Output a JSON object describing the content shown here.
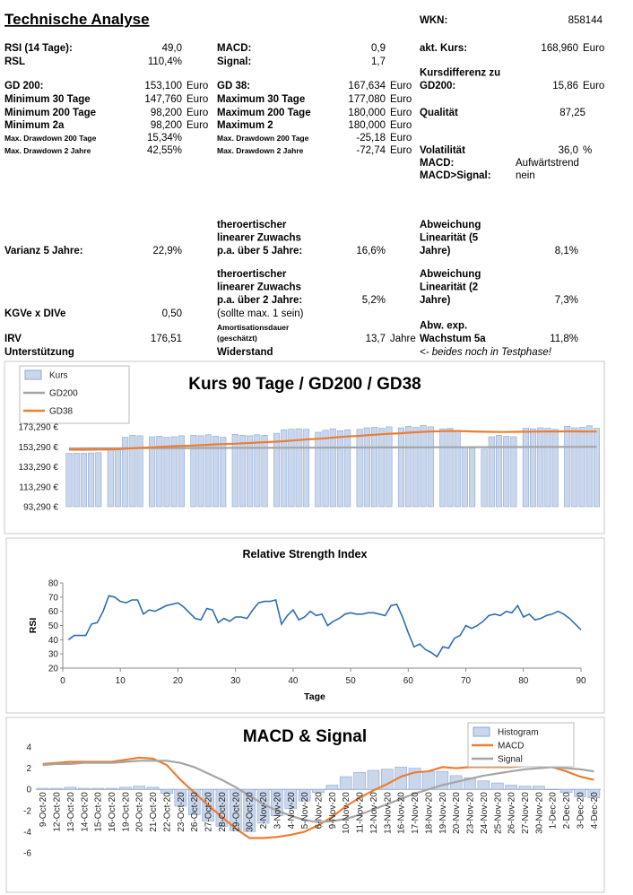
{
  "title": "Technische Analyse",
  "items": [
    {
      "label": [
        "WKN:"
      ],
      "value": "858144"
    },
    {
      "label": [
        "RSI (14 Tage):"
      ],
      "value": "49,0"
    },
    {
      "label": [
        "RSL"
      ],
      "value": "110,4%"
    },
    {
      "label": [
        "GD 200:"
      ],
      "value": "153,100",
      "unit": "Euro"
    },
    {
      "label": [
        "Minimum 30 Tage"
      ],
      "value": "147,760",
      "unit": "Euro"
    },
    {
      "label": [
        "Minimum 200 Tage"
      ],
      "value": "98,200",
      "unit": "Euro"
    },
    {
      "label": [
        "Minimum 2a"
      ],
      "value": "98,200",
      "unit": "Euro"
    },
    {
      "label": [
        "Max. Drawdown 200 Tage"
      ],
      "value": "15,34%"
    },
    {
      "label": [
        "Max. Drawdown 2 Jahre"
      ],
      "value": "42,55%"
    },
    {
      "label": [
        "Varianz 5 Jahre:"
      ],
      "value": "22,9%"
    },
    {
      "label": [
        "KGVe x DIVe"
      ],
      "value": "0,50"
    },
    {
      "label": [
        "IRV"
      ],
      "value": "176,51"
    },
    {
      "label": [
        "Unterstützung"
      ]
    },
    {
      "label": [
        "MACD:"
      ],
      "value": "0,9"
    },
    {
      "label": [
        "Signal:"
      ],
      "value": "1,7"
    },
    {
      "label": [
        "GD 38:"
      ],
      "value": "167,634",
      "unit": "Euro"
    },
    {
      "label": [
        "Maximum 30 Tage"
      ],
      "value": "177,080",
      "unit": "Euro"
    },
    {
      "label": [
        "Maximum 200 Tage"
      ],
      "value": "180,000",
      "unit": "Euro"
    },
    {
      "label": [
        "Maximum 2"
      ],
      "value": "180,000",
      "unit": "Euro"
    },
    {
      "label": [
        "Max. Drawdown 200 Tage"
      ],
      "value": "-25,18",
      "unit": "Euro"
    },
    {
      "label": [
        "Max. Drawdown 2 Jahre"
      ],
      "value": "-72,74",
      "unit": "Euro"
    },
    {
      "label": [
        "theroertischer",
        "linearer Zuwachs",
        "p.a. über 5 Jahre:"
      ],
      "value": "16,6%"
    },
    {
      "label": [
        "theroertischer",
        "linearer Zuwachs",
        "p.a. über 2 Jahre:"
      ],
      "value": "5,2%"
    },
    {
      "label": [
        "(sollte max. 1 sein)"
      ]
    },
    {
      "label": [
        "Amortisationsdauer",
        "(geschätzt)"
      ],
      "value": "13,7",
      "unit": "Jahre"
    },
    {
      "label": [
        "Widerstand"
      ]
    },
    {
      "label": [
        "akt. Kurs:"
      ],
      "value": "168,960",
      "unit": "Euro"
    },
    {
      "label": [
        "Kursdifferenz zu",
        "GD200:"
      ],
      "value": "15,86",
      "unit": "Euro"
    },
    {
      "label": [
        "Qualität"
      ],
      "value": "87,25"
    },
    {
      "label": [
        "Volatilität"
      ],
      "value": "36,0",
      "unit": "%"
    },
    {
      "label": [
        "MACD:"
      ],
      "value": "Aufwärtstrend"
    },
    {
      "label": [
        "MACD>Signal:"
      ],
      "value": "nein"
    },
    {
      "label": [
        "Abweichung",
        "Linearität (5",
        "Jahre)"
      ],
      "value": "8,1%"
    },
    {
      "label": [
        "Abweichung",
        "Linearität (2",
        "Jahre)"
      ],
      "value": "7,3%"
    },
    {
      "label": [
        "Abw. exp.",
        "Wachstum 5a"
      ],
      "value": "11,8%"
    },
    {
      "label": [
        "<- beides noch in Testphase!"
      ]
    }
  ],
  "chart_data": [
    {
      "type": "combo",
      "title": "Kurs 90 Tage / GD200 / GD38",
      "legend": "top-left",
      "ylim": [
        93290,
        183290
      ],
      "yticks": [
        {
          "value": 93290,
          "label": "93,290 €"
        },
        {
          "value": 113290,
          "label": "113,290 €"
        },
        {
          "value": 133290,
          "label": "133,290 €"
        },
        {
          "value": 153290,
          "label": "153,290 €"
        },
        {
          "value": 173290,
          "label": "173,290 €"
        }
      ],
      "series": [
        {
          "name": "Kurs",
          "type": "bar",
          "color": "#c9d6ec",
          "values": [
            146800,
            147000,
            146900,
            147200,
            147500,
            150500,
            151500,
            163000,
            165000,
            164500,
            163500,
            164000,
            163000,
            163500,
            164500,
            165000,
            164500,
            165500,
            164000,
            163000,
            166000,
            165000,
            164500,
            165500,
            165000,
            167000,
            170500,
            171000,
            171500,
            171000,
            168000,
            170000,
            171500,
            169500,
            170500,
            171000,
            172500,
            173000,
            172000,
            173500,
            172500,
            174000,
            173000,
            175000,
            173500,
            171500,
            172000,
            170000,
            153000,
            152000,
            151000,
            163500,
            165000,
            164000,
            163500,
            172000,
            171500,
            172500,
            172000,
            171000,
            174000,
            172500,
            173000,
            174500,
            172000
          ]
        },
        {
          "name": "GD200",
          "type": "line",
          "color": "#a5a5a5",
          "values": [
            151800,
            151825,
            151850,
            151875,
            151900,
            151925,
            151950,
            151975,
            152000,
            152025,
            152050,
            152075,
            152100,
            152125,
            152150,
            152175,
            152200,
            152225,
            152250,
            152275,
            152300,
            152325,
            152350,
            152375,
            152400,
            152425,
            152450,
            152475,
            152500,
            152525,
            152550,
            152575,
            152600,
            152625,
            152650,
            152675,
            152700,
            152725,
            152750,
            152775,
            152800,
            152825,
            152850,
            152875,
            152900,
            152925,
            152950,
            152975,
            153000,
            153025,
            153050,
            153075,
            153100,
            153125,
            153150,
            153175,
            153200,
            153225,
            153250,
            153275,
            153300,
            153325,
            153350,
            153375,
            153400
          ]
        },
        {
          "name": "GD38",
          "type": "line",
          "color": "#ed7d31",
          "values": [
            150500,
            150400,
            150400,
            150500,
            150600,
            150800,
            151000,
            151500,
            152000,
            152400,
            152800,
            153200,
            153600,
            154000,
            154300,
            154700,
            155000,
            155400,
            155800,
            156100,
            156500,
            156900,
            157200,
            157600,
            158000,
            158500,
            159000,
            159600,
            160200,
            160800,
            161400,
            162000,
            162600,
            163200,
            163800,
            164400,
            165000,
            165500,
            166000,
            166500,
            167000,
            167500,
            168000,
            168400,
            168800,
            169100,
            169300,
            169200,
            169000,
            168800,
            168500,
            168400,
            168300,
            168300,
            168400,
            168500,
            168600,
            168700,
            168800,
            168800,
            168900,
            168900,
            168800,
            168700,
            168700
          ]
        }
      ]
    },
    {
      "type": "line",
      "title": "Relative Strength Index",
      "xlabel": "Tage",
      "ylabel": "RSI",
      "xlim": [
        0,
        90
      ],
      "xticks": [
        0,
        10,
        20,
        30,
        40,
        50,
        60,
        70,
        80,
        90
      ],
      "ylim": [
        20,
        80
      ],
      "yticks": [
        20,
        30,
        40,
        50,
        60,
        70,
        80
      ],
      "color": "#2f6db5",
      "x": [
        1,
        2,
        3,
        4,
        5,
        6,
        7,
        8,
        9,
        10,
        11,
        12,
        13,
        14,
        15,
        16,
        17,
        18,
        19,
        20,
        21,
        22,
        23,
        24,
        25,
        26,
        27,
        28,
        29,
        30,
        31,
        32,
        33,
        34,
        35,
        36,
        37,
        38,
        39,
        40,
        41,
        42,
        43,
        44,
        45,
        46,
        47,
        48,
        49,
        50,
        51,
        52,
        53,
        54,
        55,
        56,
        57,
        58,
        59,
        60,
        61,
        62,
        63,
        64,
        65,
        66,
        67,
        68,
        69,
        70,
        71,
        72,
        73,
        74,
        75,
        76,
        77,
        78,
        79,
        80,
        81,
        82,
        83,
        84,
        85,
        86,
        87,
        88,
        89,
        90
      ],
      "values": [
        40,
        43,
        43,
        43,
        51,
        52,
        60,
        71,
        70,
        67,
        66,
        68,
        68,
        58,
        61,
        60,
        62,
        64,
        65,
        66,
        63,
        59,
        55,
        54,
        62,
        61,
        52,
        55,
        53,
        56,
        56,
        55,
        61,
        66,
        67,
        67,
        68,
        51,
        57,
        61,
        54,
        56,
        60,
        57,
        58,
        50,
        53,
        55,
        58,
        59,
        58,
        58,
        59,
        59,
        58,
        57,
        64,
        65,
        56,
        45,
        35,
        37,
        33,
        31,
        28,
        35,
        34,
        41,
        43,
        50,
        48,
        50,
        53,
        57,
        58,
        57,
        60,
        59,
        64,
        56,
        58,
        54,
        55,
        57,
        58,
        60,
        58,
        55,
        51,
        47
      ]
    },
    {
      "type": "combo",
      "title": "MACD & Signal",
      "legend": "top-right",
      "ylim": [
        -6,
        4
      ],
      "yticks": [
        -6,
        -4,
        -2,
        0,
        2,
        4
      ],
      "categories": [
        "9-Oct-20",
        "12-Oct-20",
        "13-Oct-20",
        "14-Oct-20",
        "15-Oct-20",
        "16-Oct-20",
        "19-Oct-20",
        "20-Oct-20",
        "21-Oct-20",
        "22-Oct-20",
        "23-Oct-20",
        "26-Oct-20",
        "27-Oct-20",
        "28-Oct-20",
        "29-Oct-20",
        "30-Oct-20",
        "2-Nov-20",
        "3-Nov-20",
        "4-Nov-20",
        "5-Nov-20",
        "6-Nov-20",
        "9-Nov-20",
        "10-Nov-20",
        "11-Nov-20",
        "12-Nov-20",
        "13-Nov-20",
        "16-Nov-20",
        "17-Nov-20",
        "18-Nov-20",
        "19-Nov-20",
        "20-Nov-20",
        "23-Nov-20",
        "24-Nov-20",
        "25-Nov-20",
        "26-Nov-20",
        "27-Nov-20",
        "30-Nov-20",
        "1-Dec-20",
        "2-Dec-20",
        "3-Dec-20",
        "4-Dec-20"
      ],
      "series": [
        {
          "name": "Histogram",
          "type": "bar",
          "color": "#c9d6ec",
          "values": [
            0.1,
            0.1,
            0.2,
            0.1,
            0.1,
            0.1,
            0.2,
            0.3,
            0.2,
            -0.4,
            -1.6,
            -2.4,
            -3.0,
            -3.5,
            -3.9,
            -4.0,
            -3.2,
            -2.5,
            -1.8,
            -1.1,
            -0.3,
            0.4,
            1.2,
            1.6,
            1.8,
            1.9,
            2.1,
            2.0,
            1.7,
            1.7,
            1.3,
            1.1,
            0.8,
            0.6,
            0.4,
            0.3,
            0.3,
            0.0,
            -0.3,
            -0.7,
            -0.8
          ]
        },
        {
          "name": "MACD",
          "type": "line",
          "color": "#ed7d31",
          "values": [
            2.4,
            2.5,
            2.6,
            2.6,
            2.6,
            2.6,
            2.8,
            3.0,
            2.9,
            2.3,
            0.9,
            -0.3,
            -1.5,
            -2.6,
            -3.7,
            -4.6,
            -4.6,
            -4.5,
            -4.3,
            -4.0,
            -3.4,
            -2.6,
            -1.6,
            -0.8,
            -0.1,
            0.5,
            1.2,
            1.6,
            1.7,
            2.1,
            2.0,
            2.1,
            2.1,
            2.1,
            2.1,
            2.2,
            2.3,
            2.1,
            1.7,
            1.2,
            0.9
          ]
        },
        {
          "name": "Signal",
          "type": "line",
          "color": "#a5a5a5",
          "values": [
            2.3,
            2.4,
            2.4,
            2.5,
            2.5,
            2.5,
            2.6,
            2.7,
            2.7,
            2.7,
            2.5,
            2.1,
            1.5,
            0.9,
            0.2,
            -0.6,
            -1.4,
            -2.0,
            -2.5,
            -2.9,
            -3.1,
            -3.0,
            -2.8,
            -2.4,
            -1.9,
            -1.4,
            -0.9,
            -0.4,
            0.0,
            0.4,
            0.7,
            1.0,
            1.3,
            1.5,
            1.7,
            1.9,
            2.0,
            2.1,
            2.0,
            1.9,
            1.7
          ]
        }
      ]
    }
  ]
}
